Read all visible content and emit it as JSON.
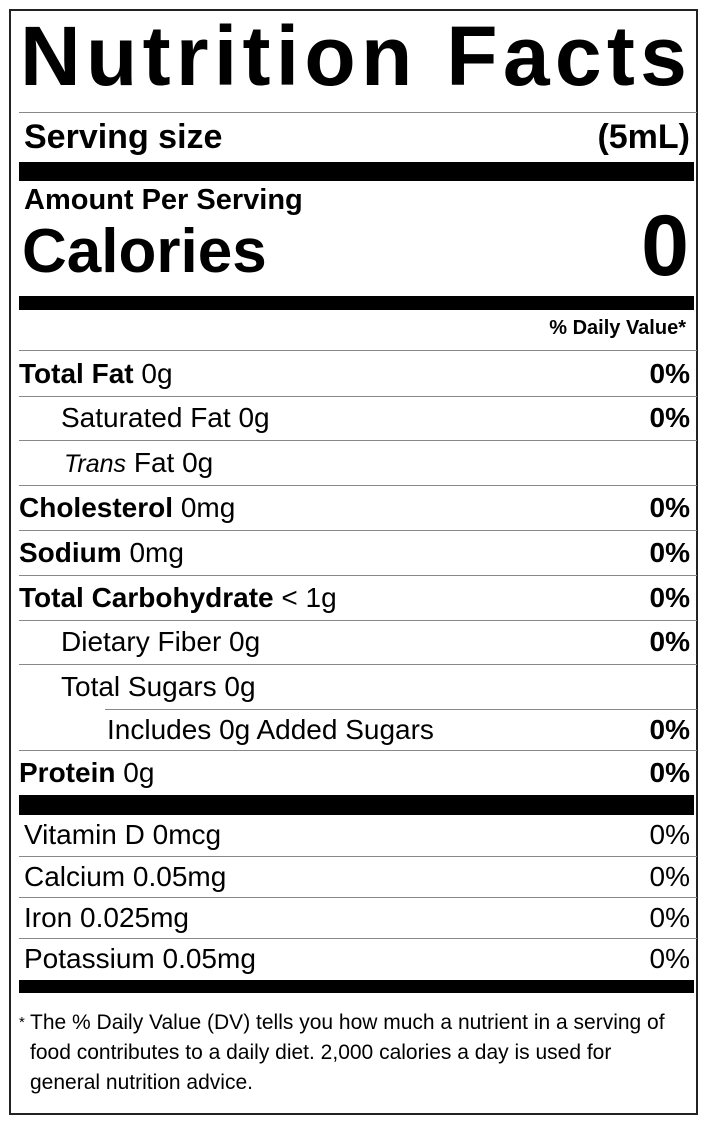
{
  "title": "Nutrition Facts",
  "serving": {
    "label": "Serving size",
    "value": "(5mL)"
  },
  "amount_per_serving": "Amount Per Serving",
  "calories": {
    "label": "Calories",
    "value": "0"
  },
  "daily_value_header": "% Daily Value*",
  "nutrients": [
    {
      "name": "Total Fat",
      "amount": "0g",
      "dv": "0%"
    },
    {
      "name": "Saturated Fat",
      "amount": "0g",
      "dv": "0%"
    },
    {
      "name_italic": "Trans",
      "name": "Fat",
      "amount": "0g",
      "dv": ""
    },
    {
      "name": "Cholesterol",
      "amount": "0mg",
      "dv": "0%"
    },
    {
      "name": "Sodium",
      "amount": "0mg",
      "dv": "0%"
    },
    {
      "name": "Total Carbohydrate",
      "amount": "< 1g",
      "dv": "0%"
    },
    {
      "name": "Dietary Fiber",
      "amount": "0g",
      "dv": "0%"
    },
    {
      "name": "Total Sugars",
      "amount": "0g",
      "dv": ""
    },
    {
      "name": "Includes 0g Added Sugars",
      "amount": "",
      "dv": "0%"
    },
    {
      "name": "Protein",
      "amount": "0g",
      "dv": "0%"
    }
  ],
  "vitamins": [
    {
      "text": "Vitamin D 0mcg",
      "dv": "0%"
    },
    {
      "text": "Calcium 0.05mg",
      "dv": "0%"
    },
    {
      "text": "Iron 0.025mg",
      "dv": "0%"
    },
    {
      "text": "Potassium 0.05mg",
      "dv": "0%"
    }
  ],
  "footnote": {
    "star": "*",
    "text": "The % Daily Value (DV) tells you how much a nutrient in a serving of food contributes to a daily diet. 2,000 calories a day is used for general nutrition advice."
  }
}
